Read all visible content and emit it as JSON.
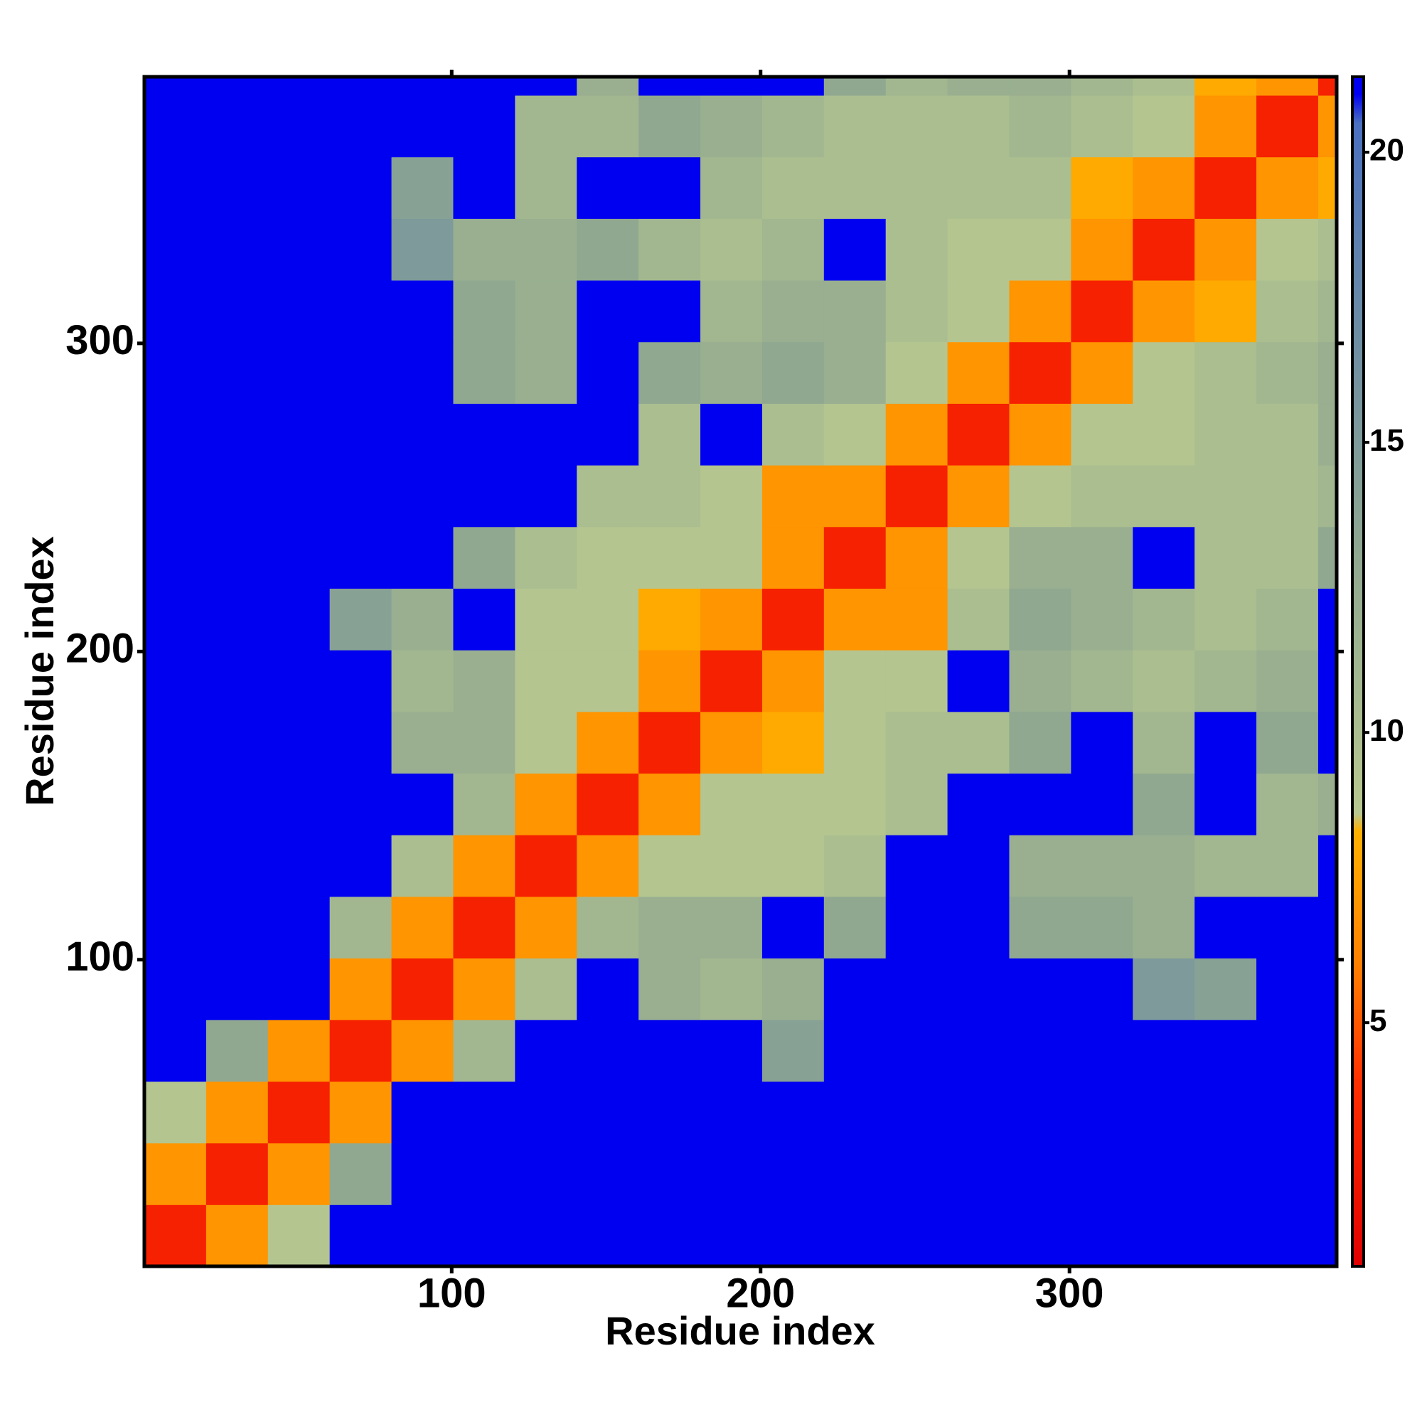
{
  "chart_data": {
    "type": "heatmap",
    "xlabel": "Residue index",
    "ylabel": "Residue index",
    "xlim": [
      0.5,
      386.5
    ],
    "ylim": [
      0.5,
      386.5
    ],
    "xticks": [
      100,
      200,
      300
    ],
    "yticks": [
      100,
      200,
      300
    ],
    "xbins": [
      0.5,
      20.5,
      40.5,
      60.5,
      80.5,
      100.5,
      120.5,
      140.5,
      160.5,
      180.5,
      200.5,
      220.5,
      240.5,
      260.5,
      280.5,
      300.5,
      320.5,
      340.5,
      360.5,
      380.5,
      386.5
    ],
    "ybins": [
      0.5,
      20.5,
      40.5,
      60.5,
      80.5,
      100.5,
      120.5,
      140.5,
      160.5,
      180.5,
      200.5,
      220.5,
      240.5,
      260.5,
      280.5,
      300.5,
      320.5,
      340.5,
      360.5,
      380.5,
      386.5
    ],
    "zlim": [
      0.8,
      21.3
    ],
    "zticks": [
      5,
      10,
      15,
      20
    ],
    "colorscale": [
      [
        0.8,
        "#e00000"
      ],
      [
        4,
        "#ff3000"
      ],
      [
        6,
        "#ff8000"
      ],
      [
        8.3,
        "#ffb000"
      ],
      [
        8.6,
        "#b8c890"
      ],
      [
        13,
        "#90a890"
      ],
      [
        17,
        "#6c8ca4"
      ],
      [
        20.5,
        "#4a70c0"
      ],
      [
        21,
        "#0000f0"
      ]
    ],
    "z": [
      [
        3,
        7,
        9,
        21,
        21,
        21,
        21,
        21,
        21,
        21,
        21,
        21,
        21,
        21,
        21,
        21,
        21,
        21,
        21,
        21
      ],
      [
        7,
        3,
        7,
        13,
        21,
        21,
        21,
        21,
        21,
        21,
        21,
        21,
        21,
        21,
        21,
        21,
        21,
        21,
        21,
        21
      ],
      [
        9,
        7,
        3,
        7,
        21,
        21,
        21,
        21,
        21,
        21,
        21,
        21,
        21,
        21,
        21,
        21,
        21,
        21,
        21,
        21
      ],
      [
        21,
        13,
        7,
        3,
        7,
        11,
        21,
        21,
        21,
        21,
        14,
        21,
        21,
        21,
        21,
        21,
        21,
        21,
        21,
        21
      ],
      [
        21,
        21,
        21,
        7,
        3,
        7,
        10,
        21,
        12,
        11,
        12,
        21,
        21,
        21,
        21,
        21,
        15,
        14,
        21,
        21
      ],
      [
        21,
        21,
        21,
        11,
        7,
        3,
        7,
        11,
        12,
        12,
        21,
        13,
        21,
        21,
        13,
        13,
        12,
        21,
        21,
        21
      ],
      [
        21,
        21,
        21,
        21,
        10,
        7,
        3,
        7,
        9,
        9,
        9,
        10,
        21,
        21,
        12,
        12,
        12,
        11,
        11,
        21
      ],
      [
        21,
        21,
        21,
        21,
        21,
        11,
        7,
        3,
        7,
        9,
        9,
        9,
        10,
        21,
        21,
        21,
        13,
        21,
        11,
        12
      ],
      [
        21,
        21,
        21,
        21,
        12,
        12,
        9,
        7,
        3,
        7,
        8,
        9,
        10,
        10,
        13,
        21,
        11,
        21,
        13,
        21
      ],
      [
        21,
        21,
        21,
        21,
        11,
        12,
        9,
        9,
        7,
        3,
        7,
        9,
        9,
        21,
        12,
        11,
        10,
        11,
        12,
        21
      ],
      [
        21,
        21,
        21,
        14,
        12,
        21,
        9,
        9,
        8,
        7,
        3,
        7,
        7,
        10,
        13,
        12,
        11,
        10,
        11,
        21
      ],
      [
        21,
        21,
        21,
        21,
        21,
        13,
        10,
        9,
        9,
        9,
        7,
        3,
        7,
        9,
        12,
        12,
        21,
        10,
        10,
        13
      ],
      [
        21,
        21,
        21,
        21,
        21,
        21,
        21,
        10,
        10,
        9,
        7,
        7,
        3,
        7,
        9,
        10,
        10,
        10,
        10,
        11
      ],
      [
        21,
        21,
        21,
        21,
        21,
        21,
        21,
        21,
        10,
        21,
        10,
        9,
        7,
        3,
        7,
        9,
        9,
        10,
        10,
        12
      ],
      [
        21,
        21,
        21,
        21,
        21,
        13,
        12,
        21,
        13,
        12,
        13,
        12,
        9,
        7,
        3,
        7,
        9,
        10,
        11,
        12
      ],
      [
        21,
        21,
        21,
        21,
        21,
        13,
        12,
        21,
        21,
        11,
        12,
        12,
        10,
        9,
        7,
        3,
        7,
        8,
        10,
        11
      ],
      [
        21,
        21,
        21,
        21,
        15,
        12,
        12,
        13,
        11,
        10,
        11,
        21,
        10,
        9,
        9,
        7,
        3,
        7,
        9,
        10
      ],
      [
        21,
        21,
        21,
        21,
        14,
        21,
        11,
        21,
        21,
        11,
        10,
        10,
        10,
        10,
        10,
        8,
        7,
        3,
        7,
        8
      ],
      [
        21,
        21,
        21,
        21,
        21,
        21,
        11,
        11,
        13,
        12,
        11,
        10,
        10,
        10,
        11,
        10,
        9,
        7,
        3,
        7
      ],
      [
        21,
        21,
        21,
        21,
        21,
        21,
        21,
        12,
        21,
        21,
        21,
        13,
        11,
        12,
        12,
        11,
        10,
        8,
        7,
        3
      ]
    ]
  }
}
